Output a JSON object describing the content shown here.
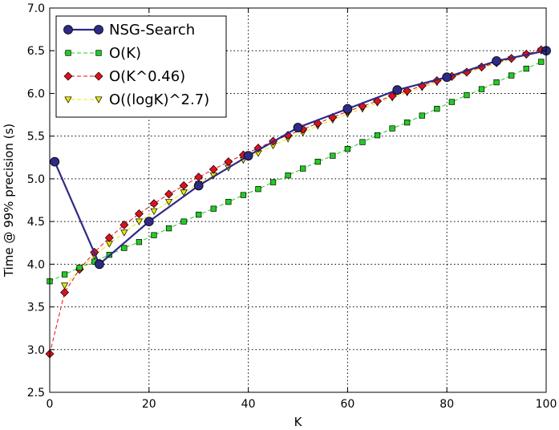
{
  "chart_data": {
    "type": "line",
    "xlabel": "K",
    "ylabel": "Time @ 99% precision (s)",
    "xlim": [
      0,
      100
    ],
    "ylim": [
      2.5,
      7.0
    ],
    "xticks": [
      0,
      20,
      40,
      60,
      80,
      100
    ],
    "yticks": [
      2.5,
      3.0,
      3.5,
      4.0,
      4.5,
      5.0,
      5.5,
      6.0,
      6.5,
      7.0
    ],
    "xtick_labels": [
      "0",
      "20",
      "40",
      "60",
      "80",
      "100"
    ],
    "ytick_labels": [
      "2.5",
      "3.0",
      "3.5",
      "4.0",
      "4.5",
      "5.0",
      "5.5",
      "6.0",
      "6.5",
      "7.0"
    ],
    "grid": true,
    "legend_position": "top-left",
    "series": [
      {
        "name": "NSG-Search",
        "color": "#2e2a86",
        "marker": "circle",
        "line": "solid",
        "x": [
          1,
          10,
          20,
          30,
          40,
          50,
          60,
          70,
          80,
          90,
          100
        ],
        "y": [
          5.2,
          4.0,
          4.5,
          4.92,
          5.27,
          5.6,
          5.82,
          6.04,
          6.19,
          6.38,
          6.5
        ]
      },
      {
        "name": "O(K)",
        "color": "#22cc22",
        "marker": "square",
        "line": "dashed",
        "x": [
          0,
          3,
          6,
          9,
          12,
          15,
          18,
          21,
          24,
          27,
          30,
          33,
          36,
          39,
          42,
          45,
          48,
          51,
          54,
          57,
          60,
          63,
          66,
          69,
          72,
          75,
          78,
          81,
          84,
          87,
          90,
          93,
          96,
          99
        ],
        "y": [
          3.8,
          3.88,
          3.96,
          4.03,
          4.11,
          4.19,
          4.26,
          4.34,
          4.42,
          4.5,
          4.58,
          4.65,
          4.73,
          4.81,
          4.88,
          4.96,
          5.04,
          5.12,
          5.2,
          5.27,
          5.35,
          5.43,
          5.51,
          5.59,
          5.66,
          5.74,
          5.82,
          5.9,
          5.98,
          6.05,
          6.13,
          6.21,
          6.29,
          6.37
        ]
      },
      {
        "name": "O(K^0.46)",
        "color": "#e0101a",
        "marker": "diamond",
        "line": "dashed",
        "x": [
          0,
          3,
          6,
          9,
          12,
          15,
          18,
          21,
          24,
          27,
          30,
          33,
          36,
          39,
          42,
          45,
          48,
          51,
          54,
          57,
          60,
          63,
          66,
          69,
          72,
          75,
          78,
          81,
          84,
          87,
          90,
          93,
          96,
          99
        ],
        "y": [
          2.95,
          3.67,
          3.94,
          4.14,
          4.31,
          4.46,
          4.59,
          4.71,
          4.82,
          4.92,
          5.02,
          5.11,
          5.2,
          5.28,
          5.36,
          5.44,
          5.51,
          5.58,
          5.65,
          5.72,
          5.79,
          5.85,
          5.91,
          5.97,
          6.03,
          6.09,
          6.15,
          6.2,
          6.25,
          6.31,
          6.36,
          6.41,
          6.46,
          6.51
        ]
      },
      {
        "name": "O((logK)^2.7)",
        "color": "#e8e800",
        "marker": "triangle-down",
        "line": "dashed",
        "x": [
          3,
          6,
          9,
          12,
          15,
          18,
          21,
          24,
          27,
          30,
          33,
          36,
          39,
          42,
          45,
          48,
          51,
          54,
          57,
          60,
          63,
          66,
          69,
          72,
          75,
          78,
          81,
          84,
          87,
          90,
          93,
          96,
          99
        ],
        "y": [
          3.75,
          3.93,
          4.1,
          4.24,
          4.37,
          4.5,
          4.62,
          4.73,
          4.84,
          4.94,
          5.04,
          5.13,
          5.22,
          5.3,
          5.39,
          5.47,
          5.54,
          5.62,
          5.69,
          5.76,
          5.82,
          5.89,
          5.95,
          6.01,
          6.07,
          6.13,
          6.19,
          6.24,
          6.3,
          6.35,
          6.4,
          6.45,
          6.5
        ]
      }
    ]
  }
}
